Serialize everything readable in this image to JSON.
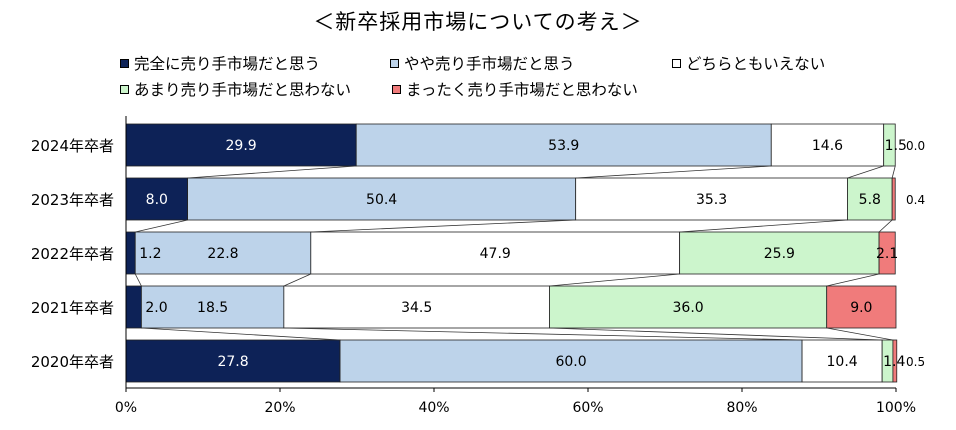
{
  "chart_data": {
    "type": "bar",
    "orientation": "horizontal",
    "stacked": true,
    "percent": true,
    "title": "＜新卒採用市場についての考え＞",
    "categories": [
      "2024年卒者",
      "2023年卒者",
      "2022年卒者",
      "2021年卒者",
      "2020年卒者"
    ],
    "series": [
      {
        "name": "完全に売り手市場だと思う",
        "color": "#0d2257",
        "label_color": "#ffffff",
        "values": [
          29.9,
          8.0,
          1.2,
          2.0,
          27.8
        ]
      },
      {
        "name": "やや売り手市場だと思う",
        "color": "#bdd3ea",
        "label_color": "#000000",
        "values": [
          53.9,
          50.4,
          22.8,
          18.5,
          60.0
        ]
      },
      {
        "name": "どちらともいえない",
        "color": "#ffffff",
        "label_color": "#000000",
        "values": [
          14.6,
          35.3,
          47.9,
          34.5,
          10.4
        ]
      },
      {
        "name": "あまり売り手市場だと思わない",
        "color": "#ccf5cc",
        "label_color": "#000000",
        "values": [
          1.5,
          5.8,
          25.9,
          36.0,
          1.4
        ]
      },
      {
        "name": "まったく売り手市場だと思わない",
        "color": "#f07b7b",
        "label_color": "#000000",
        "values": [
          0.0,
          0.4,
          2.1,
          9.0,
          0.5
        ]
      }
    ],
    "labels": [
      [
        "29.9",
        "53.9",
        "14.6",
        "1.5",
        "0.0"
      ],
      [
        "8.0",
        "50.4",
        "35.3",
        "5.8",
        "0.4"
      ],
      [
        "1.2",
        "22.8",
        "47.9",
        "25.9",
        "2.1"
      ],
      [
        "2.0",
        "18.5",
        "34.5",
        "36.0",
        "9.0"
      ],
      [
        "27.8",
        "60.0",
        "10.4",
        "1.4",
        "0.5"
      ]
    ],
    "xlim": [
      0,
      100
    ],
    "xticks": [
      "0%",
      "20%",
      "40%",
      "60%",
      "80%",
      "100%"
    ],
    "xlabel": "",
    "ylabel": "",
    "legend_position": "top",
    "series_lines": true,
    "grid": false
  }
}
